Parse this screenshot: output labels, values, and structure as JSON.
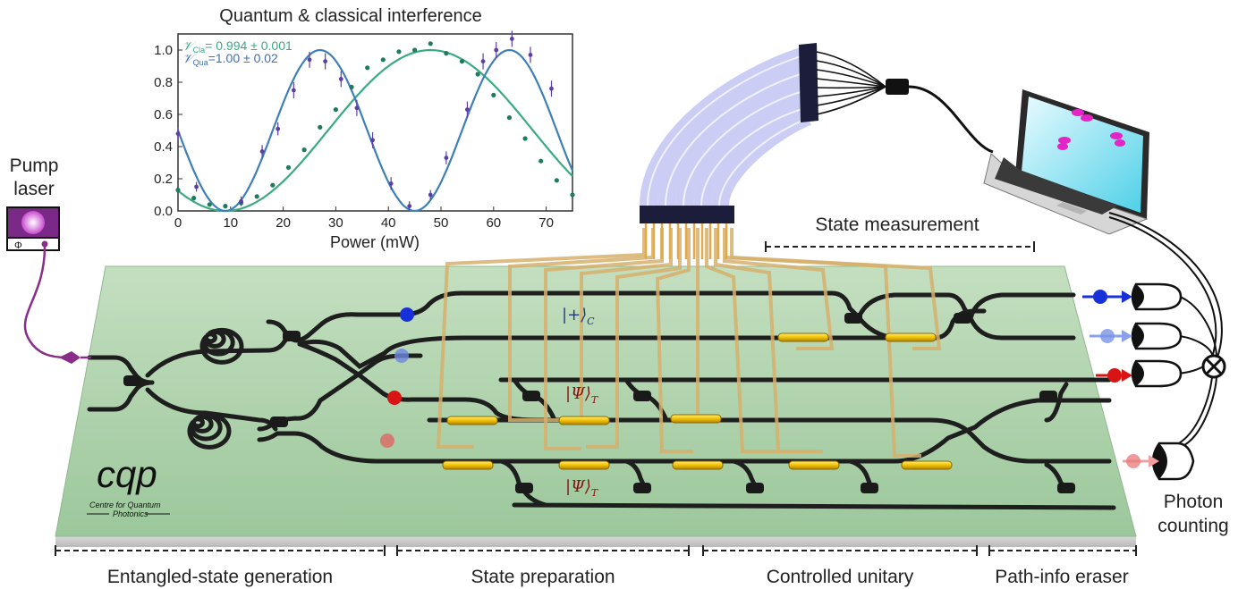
{
  "title": "Quantum & classical interference",
  "pump": {
    "label_line1": "Pump",
    "label_line2": "laser",
    "icon_symbol": "Φ"
  },
  "states": {
    "control": "|+⟩",
    "control_sub": "C",
    "target_1": "|Ψ⟩",
    "target_1_sub": "T",
    "target_2": "|Ψ⟩",
    "target_2_sub": "T"
  },
  "logo": {
    "text": "cqp",
    "line1": "Centre for Quantum",
    "line2": "Photonics"
  },
  "measurement_label": "State measurement",
  "photon_counting": {
    "line1": "Photon",
    "line2": "counting"
  },
  "stages": [
    {
      "label": "Entangled-state generation"
    },
    {
      "label": "State preparation"
    },
    {
      "label": "Controlled unitary"
    },
    {
      "label": "Path-info eraser"
    }
  ],
  "colors": {
    "chip": "#a9cfa9",
    "waveguide": "#222222",
    "heater": "#e8b400",
    "electrode": "#d8b47a",
    "classical": "#3aaa85",
    "quantum": "#3f7fb8",
    "quantum_points": "#5b3fa6",
    "laser": "#8a2d8a"
  },
  "chart_data": {
    "type": "line",
    "title": "Quantum & classical interference",
    "xlabel": "Power (mW)",
    "ylabel": "",
    "xlim": [
      0,
      75
    ],
    "ylim": [
      0,
      1.1
    ],
    "xticks": [
      0,
      10,
      20,
      30,
      40,
      50,
      60,
      70
    ],
    "yticks": [
      0.0,
      0.2,
      0.4,
      0.6,
      0.8,
      1.0
    ],
    "ytick_labels": [
      "0.0",
      "0.2",
      "0.4",
      "0.6",
      "0.8",
      "1.0"
    ],
    "annotations": [
      {
        "symbol": "𝒱",
        "sub": "Cla",
        "text": "= 0.994 ± 0.001"
      },
      {
        "symbol": "𝒱",
        "sub": "Qua",
        "text": "=1.00 ± 0.02"
      }
    ],
    "series": [
      {
        "kind": "scatter",
        "x": [
          0,
          3,
          6,
          9,
          12,
          15,
          18,
          21,
          24,
          27,
          30,
          33,
          36,
          39,
          42,
          45,
          48,
          51,
          54,
          57,
          60,
          63,
          66,
          69,
          72,
          75
        ],
        "y": [
          0.13,
          0.08,
          0.04,
          0.03,
          0.05,
          0.09,
          0.16,
          0.27,
          0.38,
          0.52,
          0.63,
          0.77,
          0.89,
          0.94,
          0.99,
          1.0,
          1.04,
          0.98,
          0.93,
          0.85,
          0.72,
          0.58,
          0.45,
          0.31,
          0.19,
          0.1
        ]
      },
      {
        "kind": "errorbar",
        "x": [
          0,
          3.5,
          12,
          16,
          19,
          22,
          25,
          28,
          31,
          34,
          37,
          40.5,
          44,
          48,
          51,
          55,
          58,
          60.5,
          63.5,
          67,
          71
        ],
        "y": [
          0.48,
          0.15,
          0.06,
          0.37,
          0.51,
          0.75,
          0.94,
          0.93,
          0.82,
          0.64,
          0.44,
          0.17,
          0.03,
          0.1,
          0.33,
          0.63,
          0.93,
          1.0,
          1.07,
          0.97,
          0.76
        ],
        "err": [
          0.04,
          0.03,
          0.03,
          0.04,
          0.04,
          0.05,
          0.05,
          0.05,
          0.05,
          0.05,
          0.05,
          0.04,
          0.03,
          0.03,
          0.04,
          0.05,
          0.05,
          0.05,
          0.05,
          0.05,
          0.05
        ]
      }
    ]
  }
}
